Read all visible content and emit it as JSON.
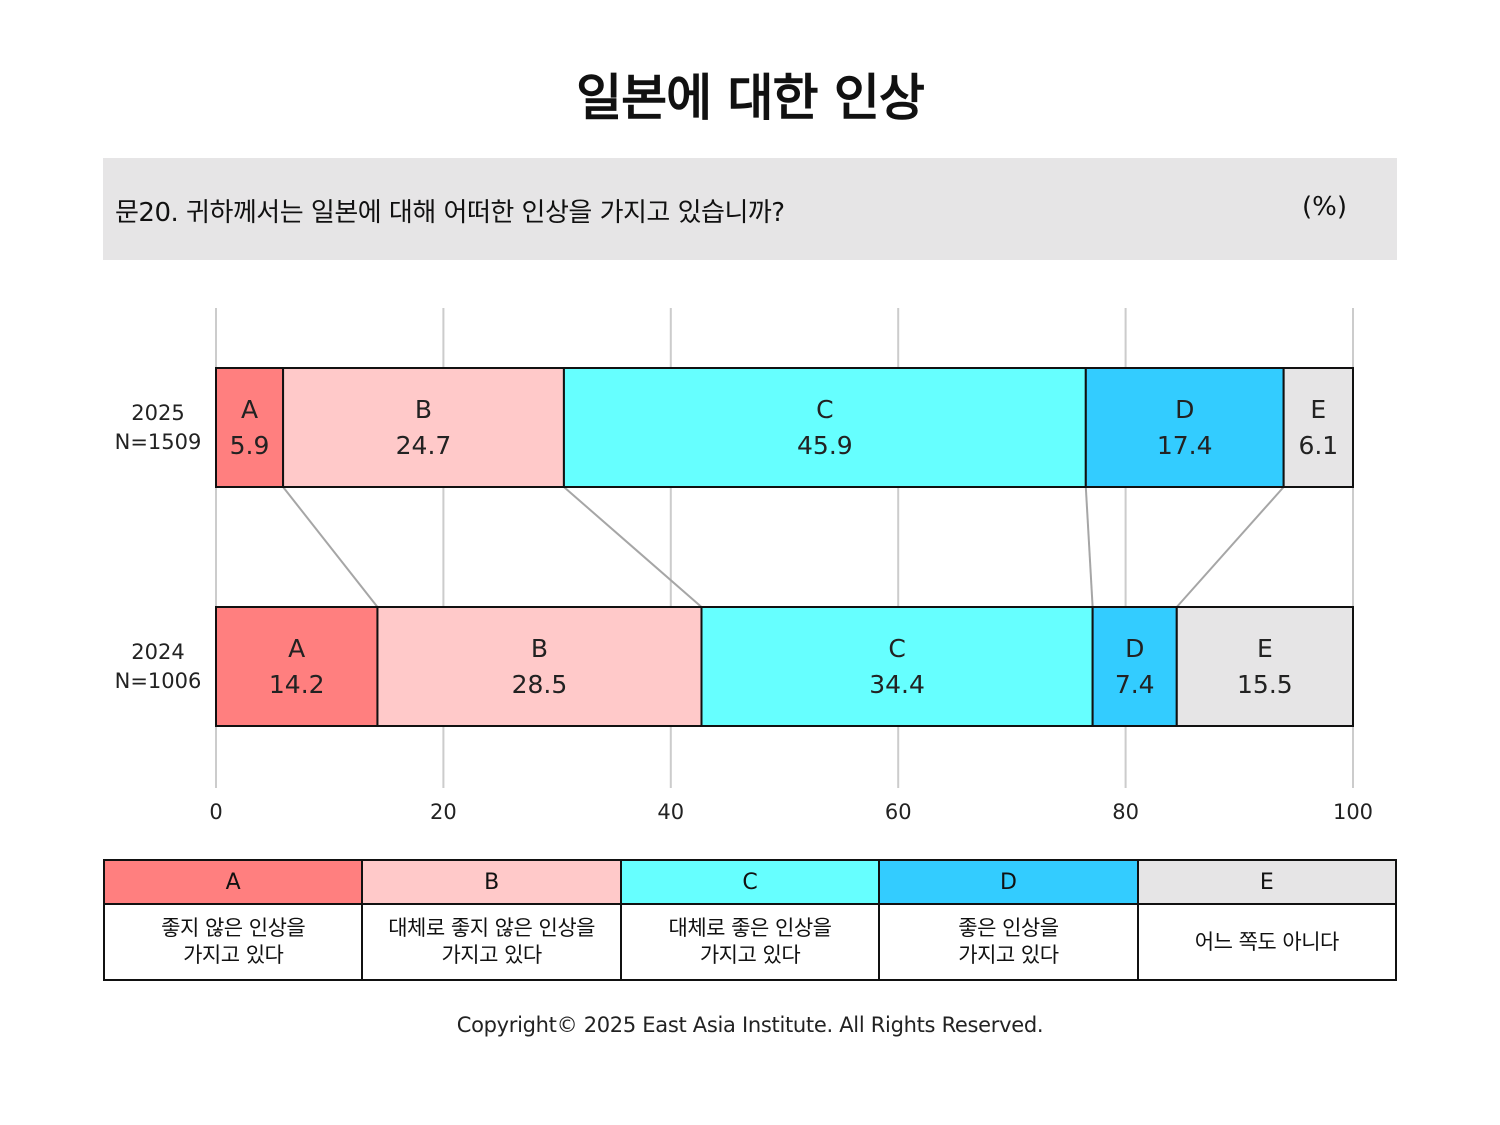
{
  "title": "일본에 대한 인상",
  "question": "문20. 귀하께서는 일본에 대해 어떠한 인상을 가지고 있습니까?",
  "unit": "(%)",
  "colors": {
    "A": "#ff7f7f",
    "B": "#ffc9c9",
    "C": "#66ffff",
    "D": "#33ccff",
    "E": "#e6e5e6",
    "grid": "#cccccc",
    "connector": "#a6a6a6"
  },
  "chart_data": {
    "type": "bar",
    "orientation": "horizontal",
    "stacked": true,
    "xlim": [
      0,
      100
    ],
    "xticks": [
      "0",
      "20",
      "40",
      "60",
      "80",
      "100"
    ],
    "grid": true,
    "categories": [
      {
        "year": "2025",
        "n": "N=1509"
      },
      {
        "year": "2024",
        "n": "N=1006"
      }
    ],
    "series": [
      {
        "key": "A",
        "values": [
          5.9,
          14.2
        ],
        "labels": [
          "5.9",
          "14.2"
        ]
      },
      {
        "key": "B",
        "values": [
          24.7,
          28.5
        ],
        "labels": [
          "24.7",
          "28.5"
        ]
      },
      {
        "key": "C",
        "values": [
          45.9,
          34.4
        ],
        "labels": [
          "45.9",
          "34.4"
        ]
      },
      {
        "key": "D",
        "values": [
          17.4,
          7.4
        ],
        "labels": [
          "17.4",
          "7.4"
        ]
      },
      {
        "key": "E",
        "values": [
          6.1,
          15.5
        ],
        "labels": [
          "6.1",
          "15.5"
        ]
      }
    ]
  },
  "legend": [
    {
      "key": "A",
      "desc": "좋지 않은 인상을\n가지고 있다"
    },
    {
      "key": "B",
      "desc": "대체로 좋지 않은 인상을\n가지고 있다"
    },
    {
      "key": "C",
      "desc": "대체로 좋은 인상을\n가지고 있다"
    },
    {
      "key": "D",
      "desc": "좋은 인상을\n가지고 있다"
    },
    {
      "key": "E",
      "desc": "어느 쪽도 아니다"
    }
  ],
  "copyright": "Copyright© 2025 East Asia Institute. All Rights Reserved."
}
